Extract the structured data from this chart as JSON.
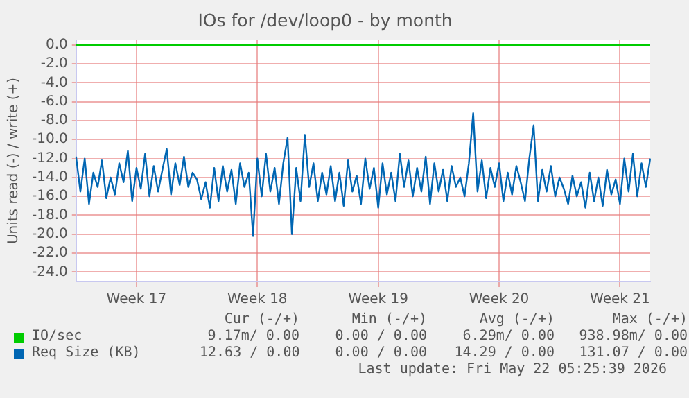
{
  "chart_data": {
    "type": "line",
    "title": "IOs for /dev/loop0 - by month",
    "ylabel": "Units read (-) / write (+)",
    "categories": [
      null,
      null,
      null,
      null,
      null,
      null,
      null,
      null,
      null,
      null,
      null,
      null,
      null,
      null,
      "Week 17",
      null,
      null,
      null,
      null,
      null,
      null,
      null,
      null,
      null,
      null,
      null,
      null,
      null,
      null,
      null,
      null,
      null,
      null,
      null,
      null,
      null,
      null,
      null,
      null,
      null,
      null,
      null,
      "Week 18",
      null,
      null,
      null,
      null,
      null,
      null,
      null,
      null,
      null,
      null,
      null,
      null,
      null,
      null,
      null,
      null,
      null,
      null,
      null,
      null,
      null,
      null,
      null,
      null,
      null,
      null,
      null,
      "Week 19",
      null,
      null,
      null,
      null,
      null,
      null,
      null,
      null,
      null,
      null,
      null,
      null,
      null,
      null,
      null,
      null,
      null,
      null,
      null,
      null,
      null,
      null,
      null,
      null,
      null,
      null,
      null,
      "Week 20",
      null,
      null,
      null,
      null,
      null,
      null,
      null,
      null,
      null,
      null,
      null,
      null,
      null,
      null,
      null,
      null,
      null,
      null,
      null,
      null,
      null,
      null,
      null,
      null,
      null,
      null,
      null,
      "Week 21",
      null,
      null,
      null,
      null,
      null,
      null,
      null
    ],
    "ylim": [
      -25,
      0.5
    ],
    "yticks": [
      {
        "value": 0,
        "label": "0.0"
      },
      {
        "value": -2,
        "label": "-2.0"
      },
      {
        "value": -4,
        "label": "-4.0"
      },
      {
        "value": -6,
        "label": "-6.0"
      },
      {
        "value": -8,
        "label": "-8.0"
      },
      {
        "value": -10,
        "label": "-10.0"
      },
      {
        "value": -12,
        "label": "-12.0"
      },
      {
        "value": -14,
        "label": "-14.0"
      },
      {
        "value": -16,
        "label": "-16.0"
      },
      {
        "value": -18,
        "label": "-18.0"
      },
      {
        "value": -20,
        "label": "-20.0"
      },
      {
        "value": -22,
        "label": "-22.0"
      },
      {
        "value": -24,
        "label": "-24.0"
      }
    ],
    "grid": true,
    "legend": "bottom",
    "marker": "none",
    "line_style": "solid",
    "series": [
      {
        "name": "IO/sec",
        "color": "#00cc00",
        "values": [
          0,
          0,
          0,
          0,
          0,
          0,
          0,
          0,
          0,
          0,
          0,
          0,
          0,
          0,
          0,
          0,
          0,
          0,
          0,
          0,
          0,
          0,
          0,
          0,
          0,
          0,
          0,
          0,
          0,
          0,
          0,
          0,
          0,
          0,
          0,
          0,
          0,
          0,
          0,
          0,
          0,
          0,
          0,
          0,
          0,
          0,
          0,
          0,
          0,
          0,
          0,
          0,
          0,
          0,
          0,
          0,
          0,
          0,
          0,
          0,
          0,
          0,
          0,
          0,
          0,
          0,
          0,
          0,
          0,
          0,
          0,
          0,
          0,
          0,
          0,
          0,
          0,
          0,
          0,
          0,
          0,
          0,
          0,
          0,
          0,
          0,
          0,
          0,
          0,
          0,
          0,
          0,
          0,
          0,
          0,
          0,
          0,
          0,
          0,
          0,
          0,
          0,
          0,
          0,
          0,
          0,
          0,
          0,
          0,
          0,
          0,
          0,
          0,
          0,
          0,
          0,
          0,
          0,
          0,
          0,
          0,
          0,
          0,
          0,
          0,
          0,
          0,
          0,
          0,
          0,
          0,
          0,
          0,
          0
        ]
      },
      {
        "name": "Req Size (KB)",
        "color": "#0066b3",
        "values": [
          -11.8,
          -15.5,
          -12.0,
          -16.8,
          -13.5,
          -15.0,
          -12.2,
          -16.2,
          -14.0,
          -15.8,
          -12.5,
          -14.5,
          -11.2,
          -16.5,
          -13.0,
          -15.2,
          -11.5,
          -16.0,
          -12.8,
          -15.5,
          -13.2,
          -11.0,
          -15.8,
          -12.5,
          -14.8,
          -11.8,
          -15.0,
          -13.5,
          -14.2,
          -16.3,
          -14.5,
          -17.2,
          -13.0,
          -16.5,
          -12.8,
          -15.5,
          -13.2,
          -16.8,
          -12.5,
          -15.0,
          -13.5,
          -20.2,
          -12.0,
          -16.0,
          -11.5,
          -15.5,
          -13.0,
          -16.8,
          -12.5,
          -9.8,
          -20.0,
          -13.0,
          -16.5,
          -9.5,
          -15.0,
          -12.5,
          -16.5,
          -13.5,
          -15.8,
          -12.8,
          -16.5,
          -13.5,
          -17.0,
          -12.2,
          -15.5,
          -13.8,
          -16.8,
          -12.0,
          -15.2,
          -13.0,
          -17.2,
          -12.5,
          -15.8,
          -13.5,
          -16.5,
          -11.5,
          -15.0,
          -12.2,
          -16.0,
          -13.0,
          -15.5,
          -11.8,
          -16.8,
          -12.5,
          -15.5,
          -13.2,
          -16.5,
          -12.8,
          -15.0,
          -14.0,
          -16.0,
          -12.5,
          -7.2,
          -15.5,
          -12.2,
          -16.2,
          -13.0,
          -15.0,
          -12.5,
          -16.5,
          -13.5,
          -15.8,
          -12.8,
          -14.5,
          -16.5,
          -12.0,
          -8.5,
          -16.5,
          -13.2,
          -15.5,
          -12.8,
          -16.0,
          -14.0,
          -15.2,
          -16.8,
          -13.8,
          -16.0,
          -14.5,
          -17.2,
          -13.5,
          -16.5,
          -14.0,
          -17.0,
          -13.2,
          -15.8,
          -14.2,
          -16.8,
          -12.0,
          -15.5,
          -11.5,
          -16.0,
          -12.5,
          -15.0,
          -12.0
        ]
      }
    ],
    "annotations": [
      "Cur (-/+)",
      "Min (-/+)",
      "Avg (-/+)",
      "Max (-/+)",
      "9.17m/ 0.00",
      "0.00 / 0.00",
      "6.29m/ 0.00",
      "938.98m/ 0.00",
      "12.63 / 0.00",
      "0.00 / 0.00",
      "14.29 / 0.00",
      "131.07 / 0.00",
      "Last update: Fri May 22 05:25:39 2026"
    ]
  }
}
